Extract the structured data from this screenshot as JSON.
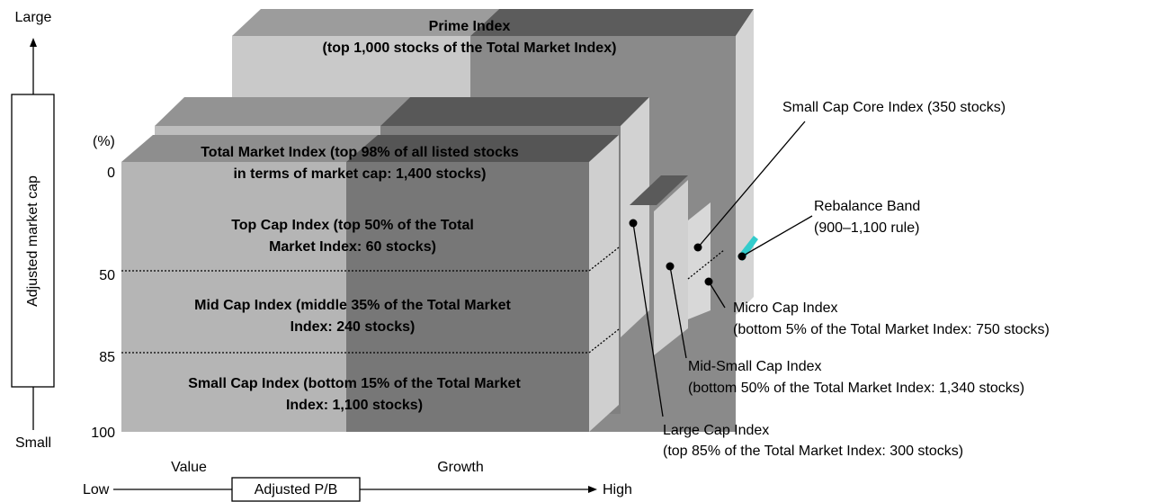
{
  "axis": {
    "top": "Large",
    "bottom": "Small",
    "label": "Adjusted market cap",
    "unit": "(%)",
    "ticks": [
      "0",
      "50",
      "85",
      "100"
    ]
  },
  "x_axis": {
    "low": "Low",
    "high": "High",
    "label": "Adjusted P/B",
    "left": "Value",
    "right": "Growth"
  },
  "boxes": {
    "prime": [
      "Prime Index",
      "(top 1,000 stocks of the Total Market Index)"
    ],
    "total_market": [
      "Total Market Index (top 98% of all listed stocks",
      "in terms of market cap: 1,400 stocks)"
    ],
    "top_cap": [
      "Top Cap Index (top 50% of the Total",
      "Market Index: 60 stocks)"
    ],
    "mid_cap": [
      "Mid Cap Index (middle 35% of the Total Market",
      "Index: 240 stocks)"
    ],
    "small_cap": [
      "Small Cap Index (bottom 15% of the Total Market",
      "Index: 1,100 stocks)"
    ]
  },
  "callouts": {
    "small_cap_core": [
      "Small Cap Core Index (350 stocks)"
    ],
    "rebalance": [
      "Rebalance Band",
      "(900–1,100 rule)"
    ],
    "micro_cap": [
      "Micro Cap Index",
      "(bottom 5% of the Total Market Index: 750 stocks)"
    ],
    "mid_small_cap": [
      "Mid-Small Cap Index",
      "(bottom 50% of the Total Market Index: 1,340 stocks)"
    ],
    "large_cap": [
      "Large Cap Index",
      "(top 85% of the Total Market Index: 300 stocks)"
    ]
  }
}
